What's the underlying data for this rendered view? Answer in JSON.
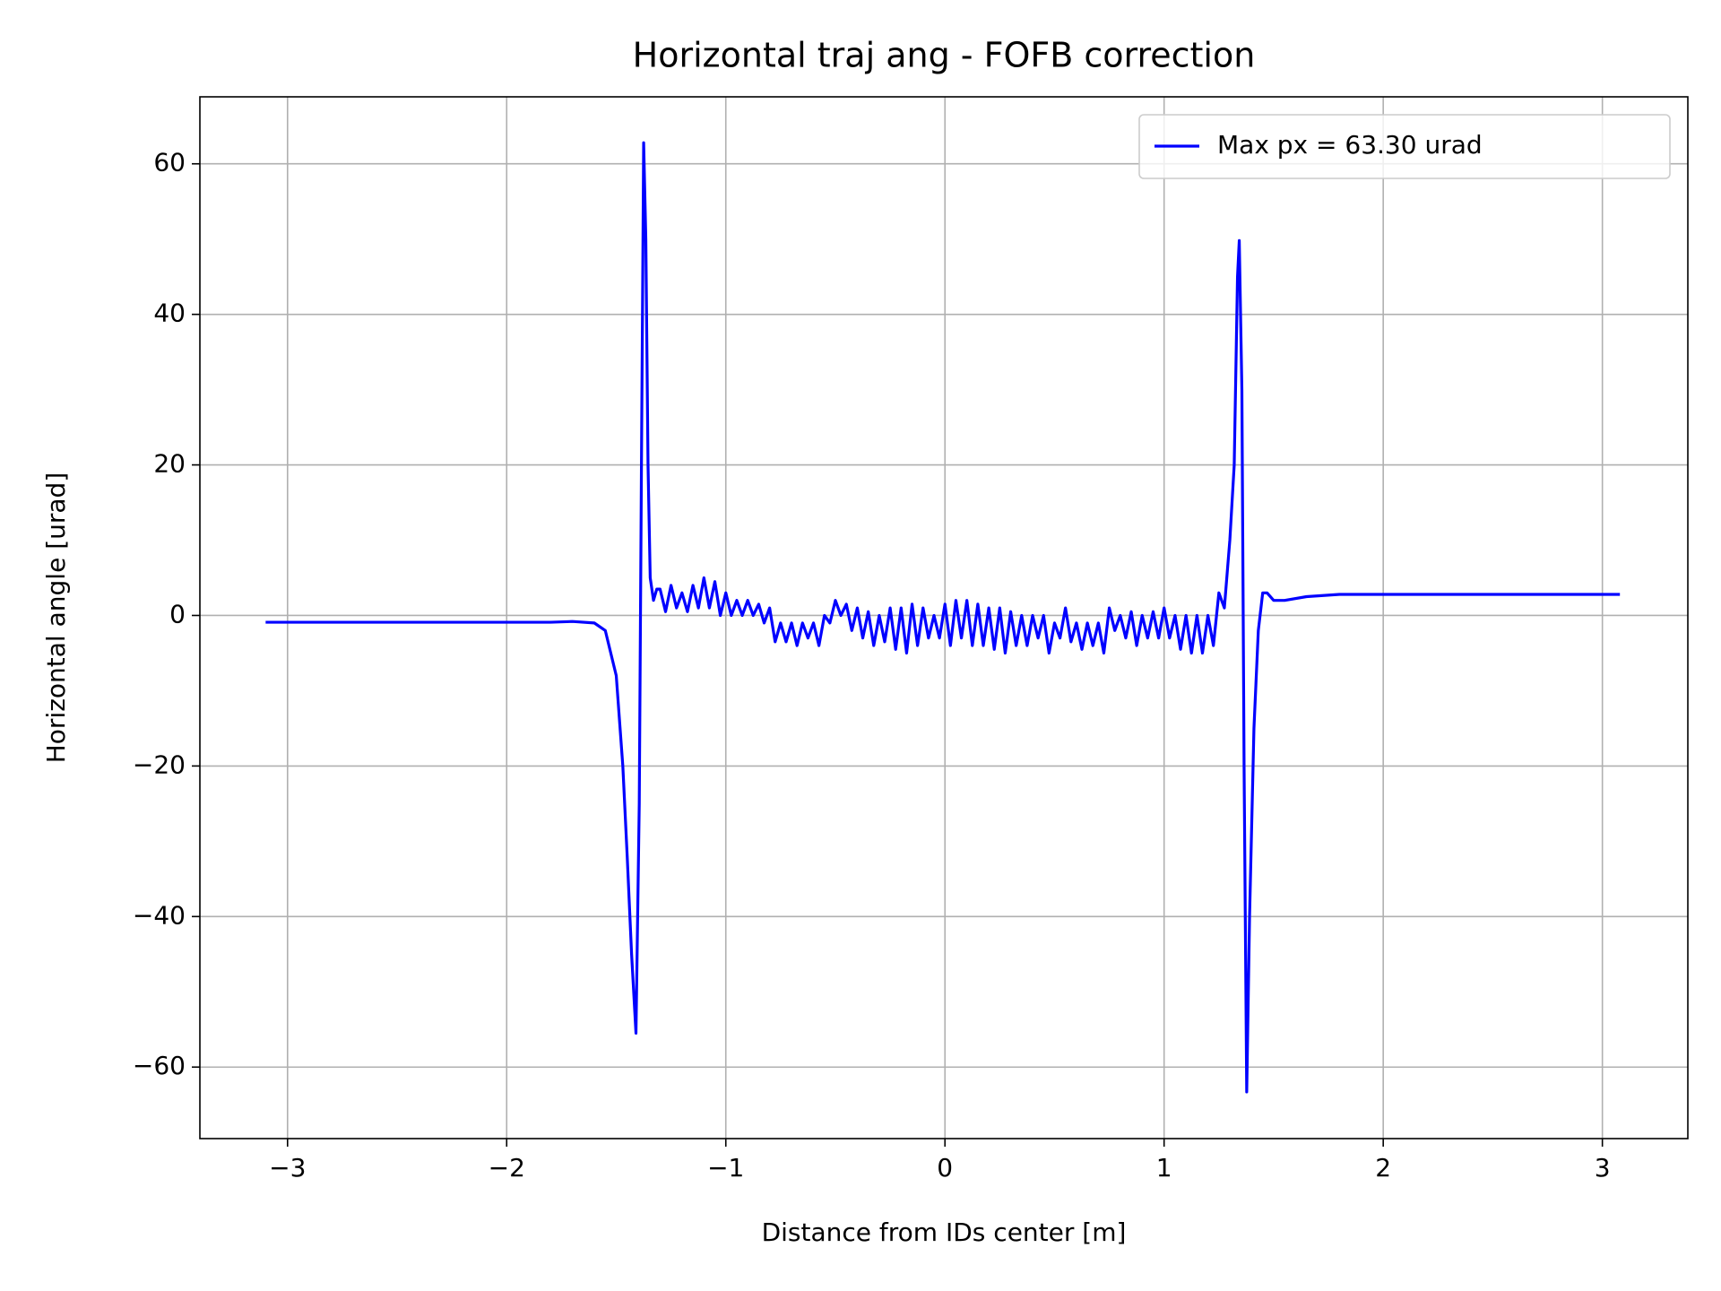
{
  "chart_data": {
    "type": "line",
    "title": "Horizontal traj ang - FOFB correction",
    "xlabel": "Distance from IDs center [m]",
    "ylabel": "Horizontal angle [urad]",
    "xlim": [
      -3.4,
      3.39
    ],
    "ylim": [
      -69.5,
      68.9
    ],
    "xticks": [
      {
        "value": -3,
        "label": "−3"
      },
      {
        "value": -2,
        "label": "−2"
      },
      {
        "value": -1,
        "label": "−1"
      },
      0,
      1,
      2,
      3
    ],
    "yticks": [
      {
        "value": -60,
        "label": "−60"
      },
      {
        "value": -40,
        "label": "−40"
      },
      {
        "value": -20,
        "label": "−20"
      },
      0,
      20,
      40,
      60
    ],
    "grid": true,
    "legend": "upper right",
    "series": [
      {
        "name": "Max px = 63.30 urad",
        "color": "#0000ff",
        "x": [
          -3.1,
          -2.5,
          -2.0,
          -1.8,
          -1.7,
          -1.6,
          -1.55,
          -1.5,
          -1.47,
          -1.45,
          -1.43,
          -1.41,
          -1.395,
          -1.385,
          -1.375,
          -1.365,
          -1.355,
          -1.345,
          -1.33,
          -1.315,
          -1.3,
          -1.275,
          -1.25,
          -1.225,
          -1.2,
          -1.175,
          -1.15,
          -1.125,
          -1.1,
          -1.075,
          -1.05,
          -1.025,
          -1.0,
          -0.975,
          -0.95,
          -0.925,
          -0.9,
          -0.875,
          -0.85,
          -0.825,
          -0.8,
          -0.775,
          -0.75,
          -0.725,
          -0.7,
          -0.675,
          -0.65,
          -0.625,
          -0.6,
          -0.575,
          -0.55,
          -0.525,
          -0.5,
          -0.475,
          -0.45,
          -0.425,
          -0.4,
          -0.375,
          -0.35,
          -0.325,
          -0.3,
          -0.275,
          -0.25,
          -0.225,
          -0.2,
          -0.175,
          -0.15,
          -0.125,
          -0.1,
          -0.075,
          -0.05,
          -0.025,
          0.0,
          0.025,
          0.05,
          0.075,
          0.1,
          0.125,
          0.15,
          0.175,
          0.2,
          0.225,
          0.25,
          0.275,
          0.3,
          0.325,
          0.35,
          0.375,
          0.4,
          0.425,
          0.45,
          0.475,
          0.5,
          0.525,
          0.55,
          0.575,
          0.6,
          0.625,
          0.65,
          0.675,
          0.7,
          0.725,
          0.75,
          0.775,
          0.8,
          0.825,
          0.85,
          0.875,
          0.9,
          0.925,
          0.95,
          0.975,
          1.0,
          1.025,
          1.05,
          1.075,
          1.1,
          1.125,
          1.15,
          1.175,
          1.2,
          1.225,
          1.25,
          1.275,
          1.3,
          1.32,
          1.335,
          1.343,
          1.355,
          1.365,
          1.377,
          1.39,
          1.41,
          1.43,
          1.45,
          1.47,
          1.5,
          1.55,
          1.65,
          1.8,
          2.5,
          3.08
        ],
        "values": [
          -0.9,
          -0.9,
          -0.9,
          -0.9,
          -0.8,
          -1.0,
          -2,
          -8,
          -20,
          -32,
          -45,
          -55.5,
          -25,
          20,
          62.8,
          50,
          20,
          5,
          2,
          3.5,
          3.5,
          0.5,
          4,
          1,
          3,
          0.5,
          4,
          1,
          5,
          1,
          4.5,
          0,
          3,
          0,
          2,
          0,
          2,
          0,
          1.5,
          -1,
          1,
          -3.5,
          -1,
          -3.5,
          -1,
          -4,
          -1,
          -3,
          -1,
          -4,
          0,
          -1,
          2,
          0,
          1.5,
          -2,
          1,
          -3,
          0.5,
          -4,
          0,
          -3.5,
          1,
          -4.5,
          1,
          -5,
          1.5,
          -4,
          1,
          -3,
          0,
          -3,
          1.5,
          -4,
          2,
          -3,
          2,
          -4,
          1.5,
          -4,
          1,
          -4.5,
          1,
          -5,
          0.5,
          -4,
          0,
          -4,
          0,
          -3,
          0,
          -5,
          -1,
          -3,
          1,
          -3.5,
          -1,
          -4.5,
          -1,
          -4,
          -1,
          -5,
          1,
          -2,
          0,
          -3,
          0.5,
          -4,
          0,
          -3,
          0.5,
          -3,
          1,
          -3,
          0,
          -4.5,
          0,
          -5,
          0,
          -5,
          0,
          -4,
          3,
          1,
          10,
          20,
          45,
          49.8,
          30,
          -20,
          -63.3,
          -40,
          -15,
          -2,
          3,
          3,
          2,
          2,
          2.5,
          2.8,
          2.8,
          2.8
        ]
      }
    ]
  }
}
